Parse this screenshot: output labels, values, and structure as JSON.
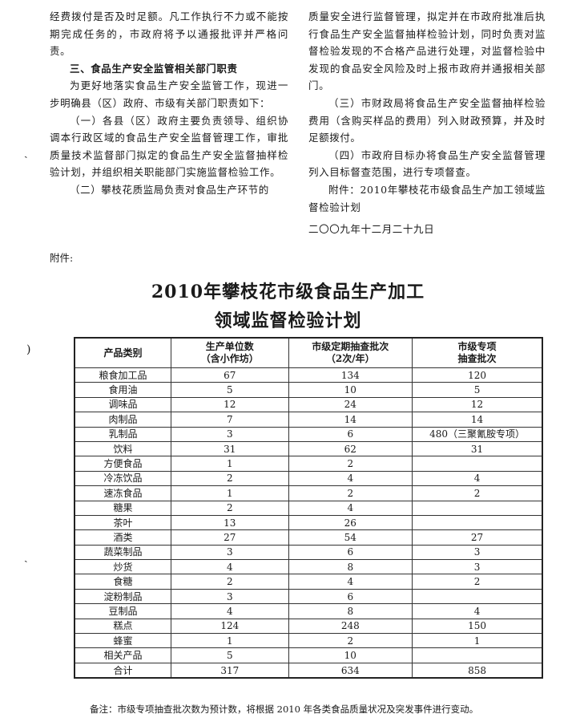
{
  "left_column": [
    "经费拨付是否及时足额。凡工作执行不力或不能按期完成任务的，市政府将予以通报批评并严格问责。",
    "三、食品生产安全监管相关部门职责",
    "为更好地落实食品生产安全监管工作，现进一步明确县（区）政府、市级有关部门职责如下：",
    "（一）各县（区）政府主要负责领导、组织协调本行政区域的食品生产安全监督管理工作，审批质量技术监督部门拟定的食品生产安全监督抽样检验计划，并组织相关职能部门实施监督检验工作。",
    "（二）攀枝花质监局负责对食品生产环节的"
  ],
  "right_column": [
    "质量安全进行监督管理，拟定并在市政府批准后执行食品生产安全监督抽样检验计划，同时负责对监督检验发现的不合格产品进行处理，对监督检验中发现的食品安全风险及时上报市政府并通报相关部门。",
    "（三）市财政局将食品生产安全监督抽样检验费用（含购买样品的费用）列入财政预算，并及时足额拨付。",
    "（四）市政府目标办将食品生产安全监督管理列入目标督查范围，进行专项督查。",
    "附件：2010年攀枝花市级食品生产加工领域监督检验计划",
    "二〇〇九年十二月二十九日"
  ],
  "attachment_label": "附件:",
  "title_line1": "2010年攀枝花市级食品生产加工",
  "title_line2": "领域监督检验计划",
  "table": {
    "headers": [
      "产品类别",
      "生产单位数\n（含小作坊）",
      "市级定期抽查批次\n（2次/年）",
      "市级专项\n抽查批次"
    ],
    "rows": [
      [
        "粮食加工品",
        "67",
        "134",
        "120"
      ],
      [
        "食用油",
        "5",
        "10",
        "5"
      ],
      [
        "调味品",
        "12",
        "24",
        "12"
      ],
      [
        "肉制品",
        "7",
        "14",
        "14"
      ],
      [
        "乳制品",
        "3",
        "6",
        "480（三聚氰胺专项）"
      ],
      [
        "饮料",
        "31",
        "62",
        "31"
      ],
      [
        "方便食品",
        "1",
        "2",
        ""
      ],
      [
        "冷冻饮品",
        "2",
        "4",
        "4"
      ],
      [
        "速冻食品",
        "1",
        "2",
        "2"
      ],
      [
        "糖果",
        "2",
        "4",
        ""
      ],
      [
        "茶叶",
        "13",
        "26",
        ""
      ],
      [
        "酒类",
        "27",
        "54",
        "27"
      ],
      [
        "蔬菜制品",
        "3",
        "6",
        "3"
      ],
      [
        "炒货",
        "4",
        "8",
        "3"
      ],
      [
        "食糖",
        "2",
        "4",
        "2"
      ],
      [
        "淀粉制品",
        "3",
        "6",
        ""
      ],
      [
        "豆制品",
        "4",
        "8",
        "4"
      ],
      [
        "糕点",
        "124",
        "248",
        "150"
      ],
      [
        "蜂蜜",
        "1",
        "2",
        "1"
      ],
      [
        "相关产品",
        "5",
        "10",
        ""
      ],
      [
        "合计",
        "317",
        "634",
        "858"
      ]
    ]
  },
  "note": "备注：市级专项抽查批次数为预计数，将根据 2010 年各类食品质量状况及突发事件进行变动。"
}
